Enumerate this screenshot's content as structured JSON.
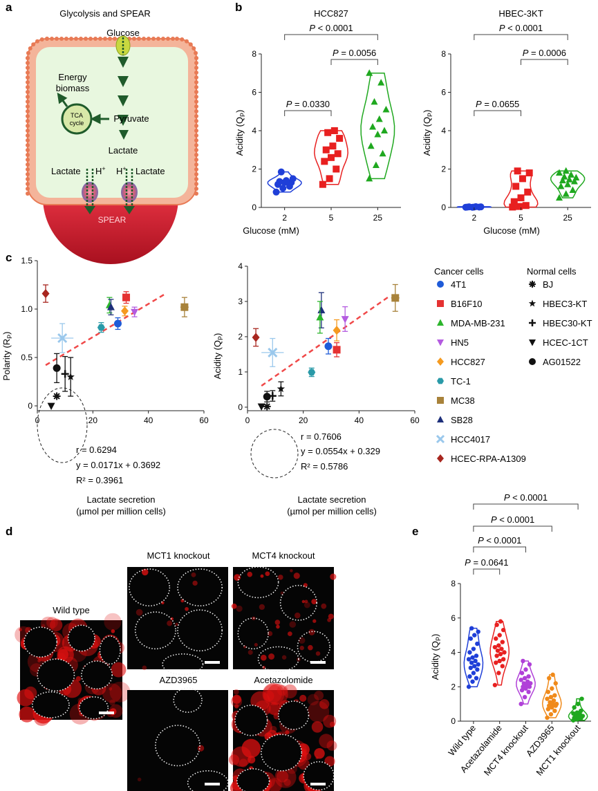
{
  "panel_letters": {
    "a": "a",
    "b": "b",
    "c": "c",
    "d": "d",
    "e": "e"
  },
  "panel_a": {
    "title": "Glycolysis and SPEAR",
    "glucose": "Glucose",
    "energy": "Energy",
    "biomass": "biomass",
    "tca_line1": "TCA",
    "tca_line2": "cycle",
    "pyruvate": "Pyruvate",
    "lactate": "Lactate",
    "lactate_left": "Lactate",
    "lactate_right": "Lactate",
    "h_plus": "H",
    "plus": "+",
    "spear": "SPEAR",
    "colors": {
      "cell_fill": "#e8f7df",
      "membrane": "#e87a55",
      "arrow": "#1f5b2b",
      "spear": "#c8172d"
    }
  },
  "panel_b": {
    "xlabel": "Glucose (mM)",
    "ylabel": "Acidity (Q",
    "ylabel_sub": "P",
    "ylabel_end": ")",
    "x_ticks": [
      "2",
      "5",
      "25"
    ],
    "y_ticks": [
      "0",
      "2",
      "4",
      "6",
      "8"
    ]
  },
  "panel_c": {
    "left_ylabel": "Polarity (R",
    "left_ylabel_sub": "P",
    "left_ylabel_end": ")",
    "right_ylabel": "Acidity (Q",
    "right_ylabel_sub": "P",
    "right_ylabel_end": ")",
    "xlabel_line1": "Lactate secretion",
    "xlabel_line2": "(µmol per million cells)",
    "left_x_ticks": [
      "0",
      "20",
      "40",
      "60"
    ],
    "left_y_ticks": [
      "0",
      "0.5",
      "1.0",
      "1.5"
    ],
    "right_x_ticks": [
      "0",
      "20",
      "40",
      "60"
    ],
    "right_y_ticks": [
      "0",
      "1",
      "2",
      "3",
      "4"
    ],
    "left_stats": {
      "r": "r = 0.6294",
      "y": "y = 0.0171x + 0.3692",
      "r2": "R² = 0.3961"
    },
    "right_stats": {
      "r": "r = 0.7606",
      "y": "y = 0.0554x + 0.329",
      "r2": "R² = 0.5786"
    },
    "legend_cancer_title": "Cancer cells",
    "legend_normal_title": "Normal cells",
    "legend_cancer": [
      {
        "name": "4T1",
        "color": "#1f5bd8",
        "marker": "circle"
      },
      {
        "name": "B16F10",
        "color": "#e53232",
        "marker": "square"
      },
      {
        "name": "MDA-MB-231",
        "color": "#2cb52c",
        "marker": "triangle"
      },
      {
        "name": "HN5",
        "color": "#b45be0",
        "marker": "triangle-down"
      },
      {
        "name": "HCC827",
        "color": "#f59a1f",
        "marker": "diamond"
      },
      {
        "name": "TC-1",
        "color": "#2a9aa8",
        "marker": "hexagon"
      },
      {
        "name": "MC38",
        "color": "#a8823a",
        "marker": "square"
      },
      {
        "name": "SB28",
        "color": "#1d2f7a",
        "marker": "triangle"
      },
      {
        "name": "HCC4017",
        "color": "#9ac8ec",
        "marker": "x"
      },
      {
        "name": "HCEC-RPA-A1309",
        "color": "#a8261f",
        "marker": "diamond"
      }
    ],
    "legend_normal": [
      {
        "name": "BJ",
        "color": "#111111",
        "marker": "asterisk"
      },
      {
        "name": "HBEC3-KT",
        "color": "#111111",
        "marker": "star"
      },
      {
        "name": "HBEC30-KT",
        "color": "#111111",
        "marker": "plus"
      },
      {
        "name": "HCEC-1CT",
        "color": "#111111",
        "marker": "triangle-down"
      },
      {
        "name": "AG01522",
        "color": "#111111",
        "marker": "circle"
      }
    ]
  },
  "panel_d": {
    "labels": {
      "wild_type": "Wild type",
      "mct1": "MCT1 knockout",
      "mct4": "MCT4 knockout",
      "azd": "AZD3965",
      "aceta": "Acetazolomide"
    }
  },
  "panel_e": {
    "ylabel": "Acidity (Q",
    "ylabel_sub": "P",
    "ylabel_end": ")",
    "y_ticks": [
      "0",
      "2",
      "4",
      "6",
      "8"
    ]
  },
  "chart_data": [
    {
      "type": "violin",
      "title": "HCC827",
      "xlabel": "Glucose (mM)",
      "ylabel": "Acidity (QP)",
      "categories": [
        "2",
        "5",
        "25"
      ],
      "ylim": [
        0,
        8
      ],
      "colors": [
        "#1f3fd8",
        "#e82020",
        "#1fa81f"
      ],
      "markers": [
        "circle",
        "square",
        "triangle"
      ],
      "points": [
        [
          1.0,
          1.2,
          1.3,
          1.4,
          1.5,
          1.1,
          0.8,
          1.85,
          1.3,
          1.35
        ],
        [
          1.2,
          1.5,
          2.0,
          2.4,
          2.8,
          3.2,
          3.6,
          3.9,
          4.0,
          3.0,
          2.6
        ],
        [
          1.5,
          2.2,
          2.8,
          3.2,
          3.8,
          4.2,
          4.6,
          5.1,
          5.5,
          6.5,
          7.0,
          4.0
        ]
      ],
      "comparisons": [
        {
          "pair": [
            0,
            1
          ],
          "label": "P = 0.0330"
        },
        {
          "pair": [
            1,
            2
          ],
          "label": "P = 0.0056"
        },
        {
          "pair": [
            0,
            2
          ],
          "label": "P < 0.0001"
        }
      ]
    },
    {
      "type": "violin",
      "title": "HBEC-3KT",
      "xlabel": "Glucose (mM)",
      "ylabel": "Acidity (QP)",
      "categories": [
        "2",
        "5",
        "25"
      ],
      "ylim": [
        0,
        8
      ],
      "colors": [
        "#1f3fd8",
        "#e82020",
        "#1fa81f"
      ],
      "markers": [
        "circle",
        "square",
        "triangle"
      ],
      "points": [
        [
          0.02,
          0.03,
          0.01,
          0.04,
          0.02,
          0.03,
          0.01,
          0.02
        ],
        [
          0.02,
          0.05,
          0.1,
          0.3,
          0.8,
          1.1,
          1.5,
          1.8,
          1.9,
          0.5
        ],
        [
          0.5,
          0.7,
          0.9,
          1.1,
          1.2,
          1.35,
          1.45,
          1.55,
          1.6,
          1.7,
          1.8,
          1.4,
          1.9
        ]
      ],
      "comparisons": [
        {
          "pair": [
            0,
            1
          ],
          "label": "P = 0.0655"
        },
        {
          "pair": [
            1,
            2
          ],
          "label": "P = 0.0006"
        },
        {
          "pair": [
            0,
            2
          ],
          "label": "P < 0.0001"
        }
      ]
    },
    {
      "type": "scatter",
      "title": "",
      "xlabel": "Lactate secretion (µmol per million cells)",
      "ylabel": "Polarity (RP)",
      "xlim": [
        0,
        60
      ],
      "ylim": [
        -0.05,
        1.5
      ],
      "fit": {
        "slope": 0.0171,
        "intercept": 0.3692,
        "x_range": [
          3,
          46
        ]
      },
      "points": [
        {
          "name": "HCEC-RPA-A1309",
          "x": 3,
          "y": 1.16,
          "xerr": 0,
          "yerr": 0.09
        },
        {
          "name": "MDA-MB-231",
          "x": 26,
          "y": 1.04,
          "xerr": 0.5,
          "yerr": 0.08
        },
        {
          "name": "SB28",
          "x": 26.5,
          "y": 1.02,
          "xerr": 0.5,
          "yerr": 0.08
        },
        {
          "name": "B16F10",
          "x": 32,
          "y": 1.12,
          "xerr": 0,
          "yerr": 0.06
        },
        {
          "name": "HCC827",
          "x": 31.5,
          "y": 0.98,
          "xerr": 0.5,
          "yerr": 0.05
        },
        {
          "name": "HN5",
          "x": 35,
          "y": 0.97,
          "xerr": 0.5,
          "yerr": 0.05
        },
        {
          "name": "MC38",
          "x": 53,
          "y": 1.02,
          "xerr": 1.5,
          "yerr": 0.1
        },
        {
          "name": "4T1",
          "x": 29,
          "y": 0.85,
          "xerr": 0.5,
          "yerr": 0.06
        },
        {
          "name": "TC-1",
          "x": 23,
          "y": 0.81,
          "xerr": 1.0,
          "yerr": 0.05
        },
        {
          "name": "HCC4017",
          "x": 9,
          "y": 0.7,
          "xerr": 4.0,
          "yerr": 0.15
        },
        {
          "name": "AG01522",
          "x": 7,
          "y": 0.39,
          "xerr": 0,
          "yerr": 0.15
        },
        {
          "name": "HBEC30-KT",
          "x": 10,
          "y": 0.33,
          "xerr": 0,
          "yerr": 0.18
        },
        {
          "name": "HBEC3-KT",
          "x": 12,
          "y": 0.3,
          "xerr": 0,
          "yerr": 0.2
        },
        {
          "name": "BJ",
          "x": 7,
          "y": 0.1,
          "xerr": 0,
          "yerr": 0.0
        },
        {
          "name": "HCEC-1CT",
          "x": 5,
          "y": 0.0,
          "xerr": 0,
          "yerr": 0.0
        }
      ]
    },
    {
      "type": "scatter",
      "title": "",
      "xlabel": "Lactate secretion (µmol per million cells)",
      "ylabel": "Acidity (QP)",
      "xlim": [
        0,
        60
      ],
      "ylim": [
        -0.1,
        4
      ],
      "fit": {
        "slope": 0.0554,
        "intercept": 0.329,
        "x_range": [
          5,
          51
        ]
      },
      "points": [
        {
          "name": "HCEC-RPA-A1309",
          "x": 3,
          "y": 1.98,
          "xerr": 0,
          "yerr": 0.25
        },
        {
          "name": "SB28",
          "x": 26.5,
          "y": 2.75,
          "xerr": 0.5,
          "yerr": 0.5
        },
        {
          "name": "MDA-MB-231",
          "x": 26,
          "y": 2.55,
          "xerr": 0.5,
          "yerr": 0.45
        },
        {
          "name": "HN5",
          "x": 35,
          "y": 2.5,
          "xerr": 0.5,
          "yerr": 0.35
        },
        {
          "name": "HCC827",
          "x": 32,
          "y": 2.18,
          "xerr": 0.5,
          "yerr": 0.3
        },
        {
          "name": "4T1",
          "x": 29,
          "y": 1.73,
          "xerr": 0.5,
          "yerr": 0.22
        },
        {
          "name": "B16F10",
          "x": 32,
          "y": 1.63,
          "xerr": 0,
          "yerr": 0.2
        },
        {
          "name": "MC38",
          "x": 53,
          "y": 3.1,
          "xerr": 1.5,
          "yerr": 0.38
        },
        {
          "name": "TC-1",
          "x": 23,
          "y": 0.99,
          "xerr": 1.0,
          "yerr": 0.12
        },
        {
          "name": "HCC4017",
          "x": 9,
          "y": 1.55,
          "xerr": 4.0,
          "yerr": 0.4
        },
        {
          "name": "AG01522",
          "x": 7,
          "y": 0.3,
          "xerr": 0,
          "yerr": 0.15
        },
        {
          "name": "HBEC30-KT",
          "x": 9,
          "y": 0.32,
          "xerr": 0,
          "yerr": 0.15
        },
        {
          "name": "HBEC3-KT",
          "x": 12,
          "y": 0.52,
          "xerr": 0,
          "yerr": 0.2
        },
        {
          "name": "BJ",
          "x": 7,
          "y": 0.02,
          "xerr": 0,
          "yerr": 0.0
        },
        {
          "name": "HCEC-1CT",
          "x": 5,
          "y": 0.02,
          "xerr": 0,
          "yerr": 0.0
        }
      ]
    },
    {
      "type": "violin",
      "title": "",
      "xlabel": "",
      "ylabel": "Acidity (QP)",
      "categories": [
        "Wild type",
        "Acetazolamide",
        "MCT4 knockout",
        "AZD3965",
        "MCT1 knockout"
      ],
      "ylim": [
        0,
        8
      ],
      "colors": [
        "#1f3fd8",
        "#e82020",
        "#b040d8",
        "#f08a1a",
        "#1fa81f"
      ],
      "markers": [
        "circle",
        "circle",
        "circle",
        "circle",
        "circle"
      ],
      "points": [
        [
          2.0,
          2.3,
          2.6,
          2.8,
          3.0,
          3.1,
          3.2,
          3.3,
          3.5,
          3.6,
          3.8,
          4.0,
          4.2,
          4.5,
          4.8,
          5.0,
          5.2,
          5.4,
          2.5,
          3.4,
          3.7
        ],
        [
          2.1,
          2.8,
          3.2,
          3.4,
          3.6,
          3.8,
          4.0,
          4.2,
          4.4,
          4.6,
          4.8,
          5.0,
          5.3,
          5.6,
          5.8,
          3.5,
          4.1,
          4.3,
          3.9
        ],
        [
          1.0,
          1.4,
          1.7,
          1.9,
          2.0,
          2.1,
          2.2,
          2.3,
          2.4,
          2.5,
          2.6,
          2.8,
          3.0,
          3.3,
          3.5,
          2.2,
          2.0,
          1.8
        ],
        [
          0.2,
          0.4,
          0.6,
          0.7,
          0.8,
          0.9,
          1.0,
          1.1,
          1.2,
          1.3,
          1.4,
          1.5,
          1.7,
          1.9,
          2.2,
          2.5,
          2.7,
          1.0,
          0.9
        ],
        [
          0.05,
          0.1,
          0.15,
          0.2,
          0.25,
          0.3,
          0.35,
          0.4,
          0.45,
          0.5,
          0.6,
          0.8,
          1.0,
          1.3,
          0.3,
          0.2,
          0.25
        ]
      ],
      "comparisons": [
        {
          "pair": [
            0,
            1
          ],
          "label": "P = 0.0641"
        },
        {
          "pair": [
            0,
            2
          ],
          "label": "P < 0.0001"
        },
        {
          "pair": [
            0,
            3
          ],
          "label": "P < 0.0001"
        },
        {
          "pair": [
            0,
            4
          ],
          "label": "P < 0.0001"
        }
      ]
    }
  ]
}
